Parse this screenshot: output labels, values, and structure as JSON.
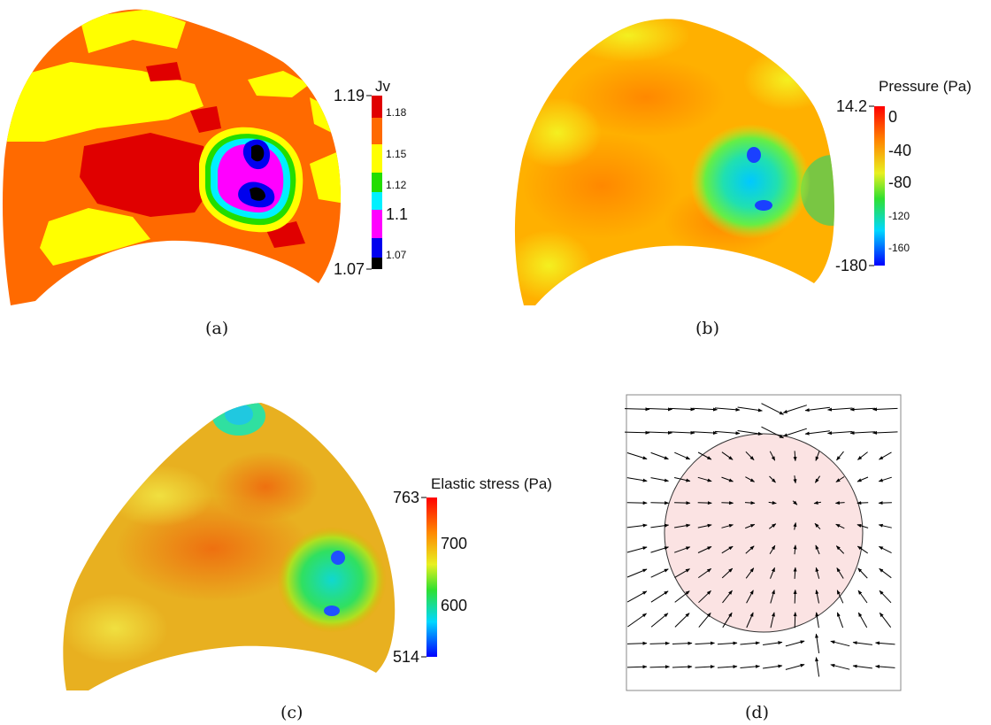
{
  "panels": [
    {
      "id": "a",
      "caption": "(a)",
      "legend": {
        "title": "Jv",
        "max": "1.19",
        "min": "1.07",
        "ticks": [
          "1.18",
          "1.15",
          "1.12",
          "1.1",
          "1.07"
        ],
        "colors": [
          "#e00000",
          "#ff6a00",
          "#ffff00",
          "#22dd00",
          "#00f0ff",
          "#ff00ff",
          "#0000ee",
          "#000000"
        ]
      }
    },
    {
      "id": "b",
      "caption": "(b)",
      "legend": {
        "title": "Pressure (Pa)",
        "max": "14.2",
        "min": "-180",
        "ticks": [
          "0",
          "-40",
          "-80",
          "-120",
          "-160"
        ]
      }
    },
    {
      "id": "c",
      "caption": "(c)",
      "legend": {
        "title": "Elastic stress (Pa)",
        "max": "763",
        "min": "514",
        "ticks": [
          "700",
          "600"
        ]
      }
    },
    {
      "id": "d",
      "caption": "(d)"
    }
  ],
  "colors": {
    "orange": "#ff6a00",
    "yellow": "#ffff00",
    "red": "#e00000",
    "circle_fill": "#fbe3e3"
  }
}
